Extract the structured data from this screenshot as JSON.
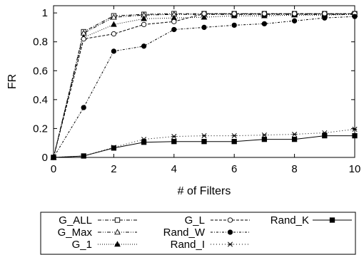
{
  "chart_data": {
    "type": "line",
    "xlabel": "# of Filters",
    "ylabel": "FR",
    "xlim": [
      0,
      10
    ],
    "ylim": [
      0,
      1.05
    ],
    "x_ticks": [
      "0",
      "2",
      "4",
      "6",
      "8",
      "10"
    ],
    "y_ticks": [
      "0",
      "0.2",
      "0.4",
      "0.6",
      "0.8",
      "1"
    ],
    "grid": false,
    "legend_position": "bottom",
    "x": [
      0,
      1,
      2,
      3,
      4,
      5,
      6,
      7,
      8,
      9,
      10
    ],
    "series": [
      {
        "name": "G_ALL",
        "marker": "square-open",
        "dash": "dashdot",
        "values": [
          0,
          0.87,
          0.98,
          0.99,
          0.995,
          0.995,
          0.995,
          0.995,
          0.995,
          0.995,
          0.995
        ]
      },
      {
        "name": "G_Max",
        "marker": "triangle-open",
        "dash": "dashdot2",
        "values": [
          0,
          0.86,
          0.97,
          0.985,
          0.99,
          0.99,
          0.99,
          0.99,
          0.99,
          0.99,
          0.99
        ]
      },
      {
        "name": "G_1",
        "marker": "triangle",
        "dash": "dotted",
        "values": [
          0,
          0.83,
          0.92,
          0.96,
          0.965,
          0.97,
          0.98,
          0.98,
          0.985,
          0.985,
          0.99
        ]
      },
      {
        "name": "G_L",
        "marker": "circle-open",
        "dash": "dashed",
        "values": [
          0,
          0.82,
          0.855,
          0.92,
          0.94,
          0.995,
          0.995,
          0.995,
          0.995,
          0.995,
          0.995
        ]
      },
      {
        "name": "Rand_W",
        "marker": "circle",
        "dash": "dashdot3",
        "values": [
          0,
          0.345,
          0.735,
          0.77,
          0.885,
          0.9,
          0.915,
          0.925,
          0.945,
          0.965,
          0.975
        ]
      },
      {
        "name": "Rand_I",
        "marker": "star",
        "dash": "dotted2",
        "values": [
          0,
          0.01,
          0.07,
          0.125,
          0.145,
          0.15,
          0.15,
          0.155,
          0.16,
          0.17,
          0.195
        ]
      },
      {
        "name": "Rand_K",
        "marker": "square",
        "dash": "solid",
        "values": [
          0,
          0.01,
          0.065,
          0.105,
          0.11,
          0.11,
          0.11,
          0.125,
          0.125,
          0.15,
          0.15
        ]
      }
    ]
  }
}
